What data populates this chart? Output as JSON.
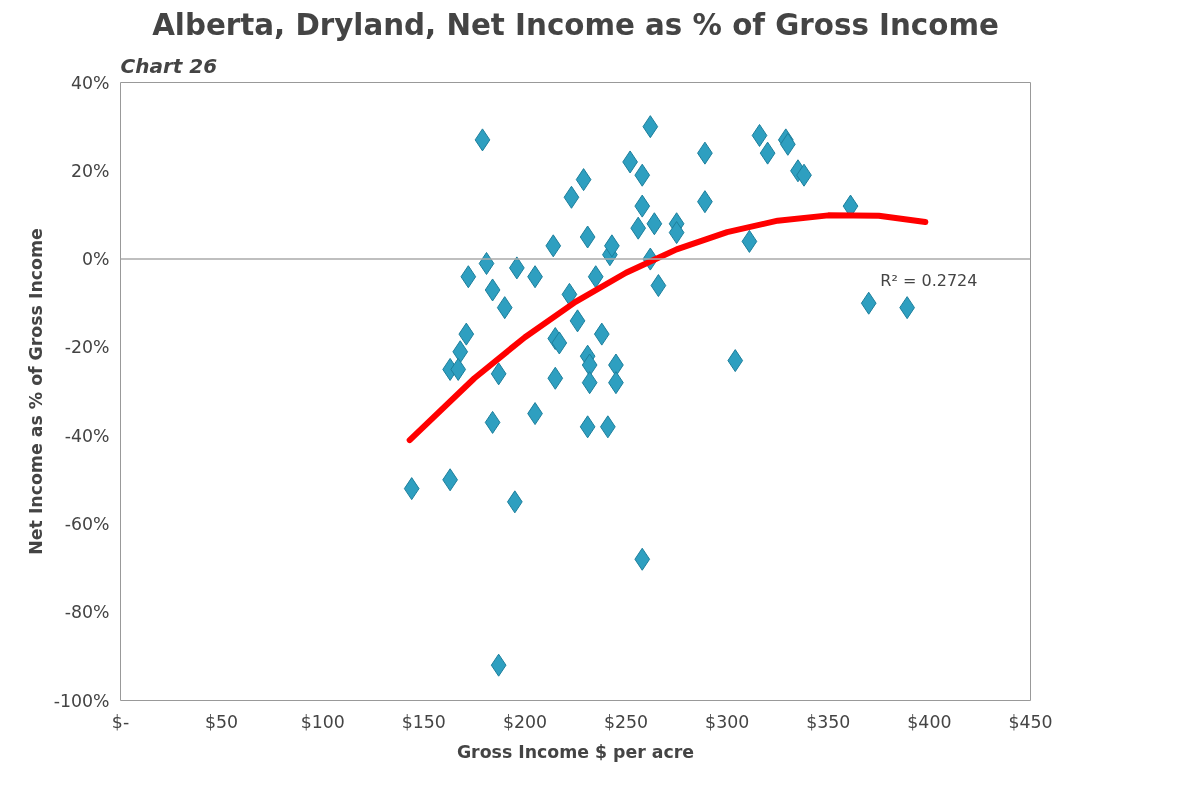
{
  "chart_data": {
    "type": "scatter",
    "title": "Alberta, Dryland, Net Income as % of Gross Income",
    "xlabel": "Gross Income $ per acre",
    "ylabel": "Net Income as % of Gross Income",
    "annotations": [
      "Chart 26",
      {
        "text": "R² = 0.2724",
        "x": 398,
        "y": 8
      }
    ],
    "xlim": [
      0,
      450
    ],
    "ylim": [
      -100,
      40
    ],
    "xticks": [
      {
        "value": 0,
        "label": "$-"
      },
      {
        "value": 50,
        "label": "$50"
      },
      {
        "value": 100,
        "label": "$100"
      },
      {
        "value": 150,
        "label": "$150"
      },
      {
        "value": 200,
        "label": "$200"
      },
      {
        "value": 250,
        "label": "$250"
      },
      {
        "value": 300,
        "label": "$300"
      },
      {
        "value": 350,
        "label": "$350"
      },
      {
        "value": 400,
        "label": "$400"
      },
      {
        "value": 450,
        "label": "$450"
      }
    ],
    "yticks": [
      {
        "value": 40,
        "label": "40%"
      },
      {
        "value": 20,
        "label": "20%"
      },
      {
        "value": 0,
        "label": "0%"
      },
      {
        "value": -20,
        "label": "-20%"
      },
      {
        "value": -40,
        "label": "-40%"
      },
      {
        "value": -60,
        "label": "-60%"
      },
      {
        "value": -80,
        "label": "-80%"
      },
      {
        "value": -100,
        "label": "-100%"
      }
    ],
    "grid": false,
    "marker": "diamond",
    "ref_lines": [
      {
        "axis": "y",
        "value": 0,
        "color": "#aaaaaa",
        "line_style": "solid"
      }
    ],
    "series": [
      {
        "type": "scatter",
        "color": "#2e9fc0",
        "x": [
          144,
          179,
          181,
          172,
          171,
          168,
          163,
          167,
          163,
          184,
          187,
          184,
          190,
          196,
          205,
          195,
          187,
          205,
          214,
          223,
          229,
          215,
          217,
          215,
          222,
          226,
          231,
          231,
          232,
          232,
          231,
          235,
          238,
          241,
          242,
          243,
          245,
          245,
          252,
          258,
          258,
          262,
          256,
          264,
          262,
          266,
          275,
          275,
          258,
          289,
          289,
          304,
          311,
          316,
          320,
          329,
          330,
          335,
          338,
          361,
          370,
          389
        ],
        "values": [
          -52,
          27,
          -1,
          -4,
          -17,
          -21,
          -25,
          -25,
          -50,
          -37,
          -26,
          -7,
          -11,
          -2,
          -4,
          -55,
          -92,
          -35,
          3,
          14,
          18,
          -18,
          -19,
          -27,
          -8,
          -14,
          5,
          -22,
          -24,
          -28,
          -38,
          -4,
          -17,
          -38,
          1,
          3,
          -24,
          -28,
          22,
          19,
          12,
          30,
          7,
          8,
          0,
          -6,
          8,
          6,
          -68,
          24,
          13,
          -23,
          4,
          28,
          24,
          27,
          26,
          20,
          19,
          12,
          -10,
          -11
        ]
      },
      {
        "type": "line",
        "color": "#ff0000",
        "line_style": "solid",
        "marker": "none",
        "x": [
          143,
          175,
          200,
          225,
          250,
          275,
          300,
          325,
          350,
          375,
          398
        ],
        "values": [
          -41,
          -27,
          -17.7,
          -9.7,
          -3.1,
          2.2,
          6.1,
          8.7,
          9.9,
          9.8,
          8.4
        ]
      }
    ]
  }
}
